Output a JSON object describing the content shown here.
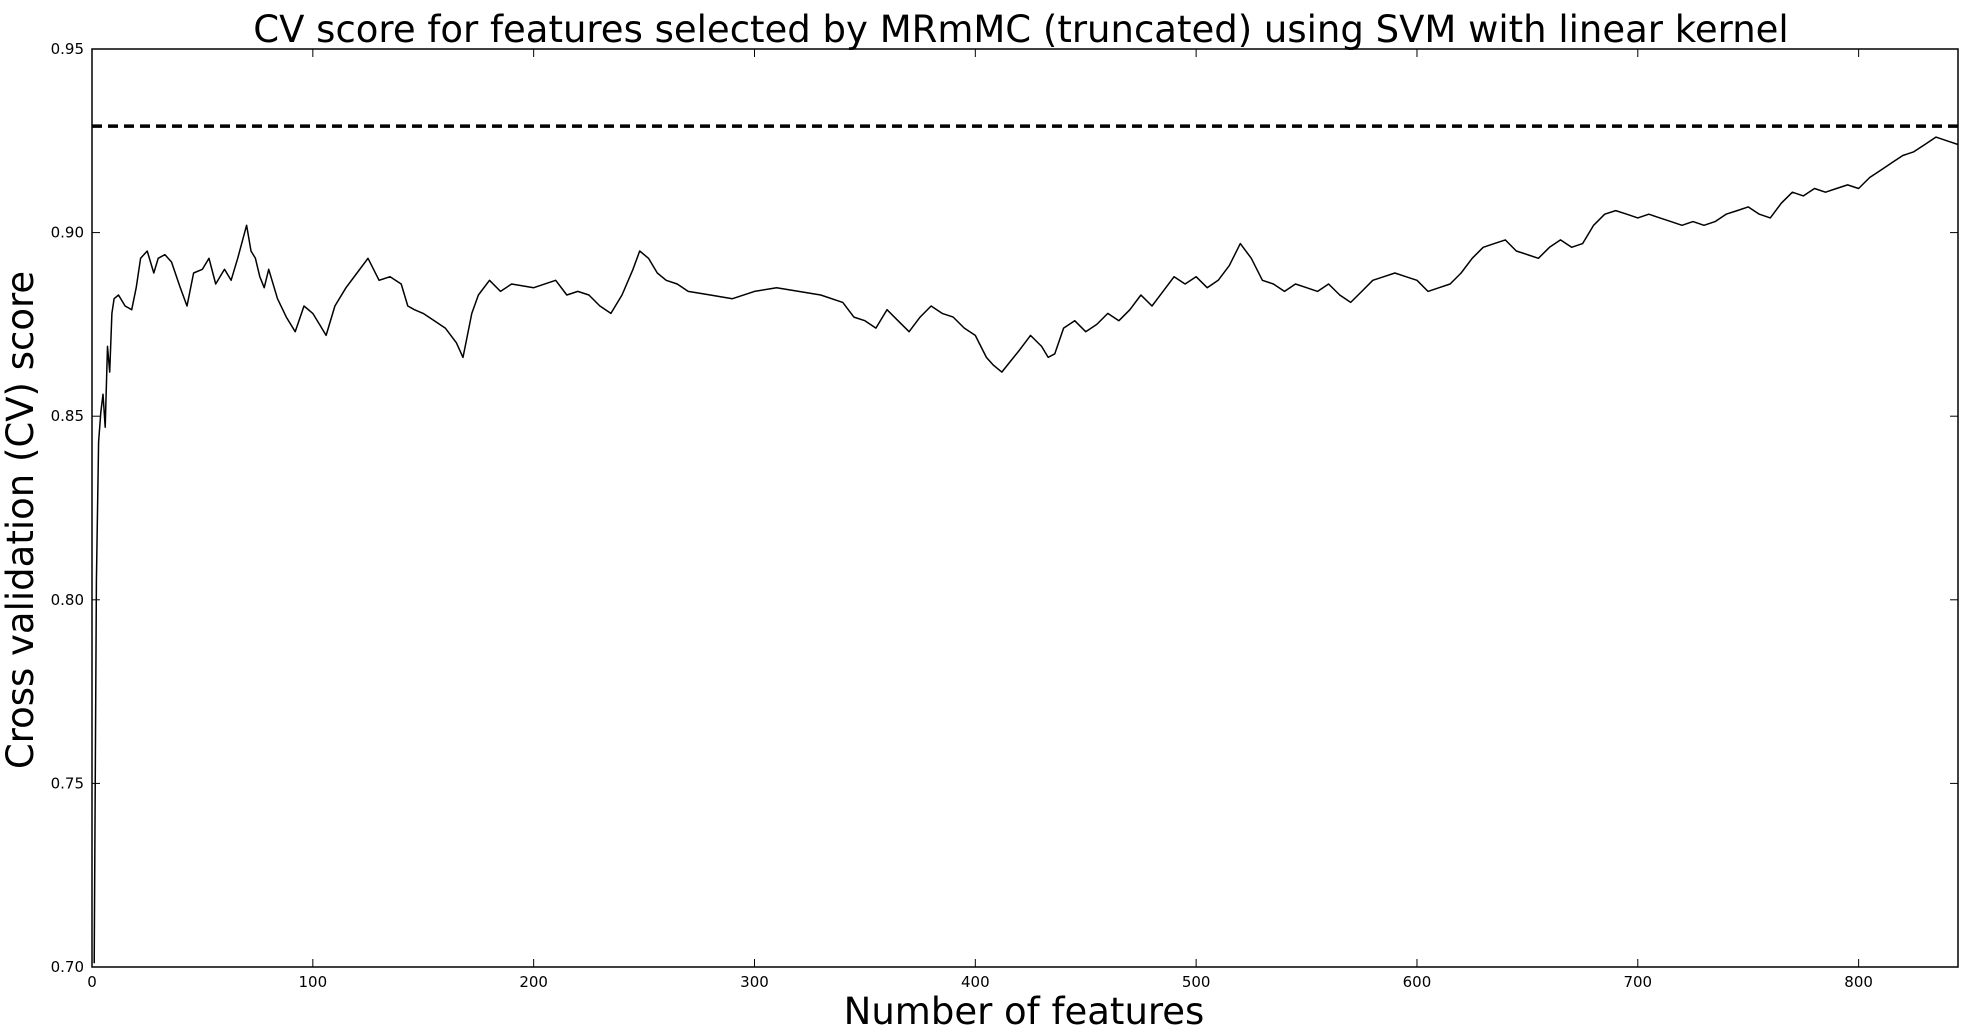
{
  "chart_data": {
    "type": "line",
    "title": "CV score for features selected by MRmMC (truncated) using SVM with linear kernel",
    "xlabel": "Number of features",
    "ylabel": "Cross validation (CV) score",
    "xlim": [
      0,
      845
    ],
    "ylim": [
      0.7,
      0.95
    ],
    "xticks": [
      0,
      100,
      200,
      300,
      400,
      500,
      600,
      700,
      800
    ],
    "yticks": [
      0.7,
      0.75,
      0.8,
      0.85,
      0.9,
      0.95
    ],
    "xtick_labels": [
      "0",
      "100",
      "200",
      "300",
      "400",
      "500",
      "600",
      "700",
      "800"
    ],
    "ytick_labels": [
      "0.70",
      "0.75",
      "0.80",
      "0.85",
      "0.90",
      "0.95"
    ],
    "grid": false,
    "series": [
      {
        "style": "solid",
        "color": "#000000",
        "x": [
          1,
          2,
          3,
          4,
          5,
          6,
          7,
          8,
          9,
          10,
          12,
          15,
          18,
          20,
          22,
          25,
          28,
          30,
          33,
          36,
          40,
          43,
          46,
          50,
          53,
          56,
          60,
          63,
          66,
          70,
          72,
          74,
          76,
          78,
          80,
          84,
          88,
          92,
          96,
          100,
          103,
          106,
          110,
          115,
          120,
          125,
          130,
          135,
          140,
          143,
          146,
          150,
          155,
          160,
          165,
          168,
          170,
          172,
          175,
          180,
          185,
          190,
          200,
          210,
          215,
          220,
          225,
          230,
          235,
          240,
          245,
          248,
          252,
          256,
          260,
          265,
          270,
          280,
          290,
          300,
          310,
          320,
          330,
          340,
          345,
          350,
          355,
          360,
          365,
          370,
          375,
          380,
          385,
          390,
          395,
          400,
          405,
          408,
          412,
          416,
          420,
          425,
          430,
          433,
          436,
          440,
          445,
          450,
          455,
          460,
          465,
          470,
          475,
          480,
          485,
          490,
          495,
          500,
          505,
          510,
          515,
          520,
          525,
          530,
          535,
          540,
          545,
          550,
          555,
          560,
          565,
          570,
          575,
          580,
          585,
          590,
          595,
          600,
          605,
          610,
          615,
          620,
          625,
          630,
          635,
          640,
          645,
          650,
          655,
          660,
          665,
          670,
          675,
          680,
          685,
          690,
          695,
          700,
          705,
          710,
          715,
          720,
          725,
          730,
          735,
          740,
          745,
          750,
          755,
          760,
          765,
          770,
          775,
          780,
          785,
          790,
          795,
          800,
          805,
          810,
          815,
          820,
          825,
          830,
          835,
          840,
          845
        ],
        "y": [
          0.701,
          0.805,
          0.843,
          0.851,
          0.856,
          0.847,
          0.869,
          0.862,
          0.878,
          0.882,
          0.883,
          0.88,
          0.879,
          0.885,
          0.893,
          0.895,
          0.889,
          0.893,
          0.894,
          0.892,
          0.885,
          0.88,
          0.889,
          0.89,
          0.893,
          0.886,
          0.89,
          0.887,
          0.893,
          0.902,
          0.895,
          0.893,
          0.888,
          0.885,
          0.89,
          0.882,
          0.877,
          0.873,
          0.88,
          0.878,
          0.875,
          0.872,
          0.88,
          0.885,
          0.889,
          0.893,
          0.887,
          0.888,
          0.886,
          0.88,
          0.879,
          0.878,
          0.876,
          0.874,
          0.87,
          0.866,
          0.872,
          0.878,
          0.883,
          0.887,
          0.884,
          0.886,
          0.885,
          0.887,
          0.883,
          0.884,
          0.883,
          0.88,
          0.878,
          0.883,
          0.89,
          0.895,
          0.893,
          0.889,
          0.887,
          0.886,
          0.884,
          0.883,
          0.882,
          0.884,
          0.885,
          0.884,
          0.883,
          0.881,
          0.877,
          0.876,
          0.874,
          0.879,
          0.876,
          0.873,
          0.877,
          0.88,
          0.878,
          0.877,
          0.874,
          0.872,
          0.866,
          0.864,
          0.862,
          0.865,
          0.868,
          0.872,
          0.869,
          0.866,
          0.867,
          0.874,
          0.876,
          0.873,
          0.875,
          0.878,
          0.876,
          0.879,
          0.883,
          0.88,
          0.884,
          0.888,
          0.886,
          0.888,
          0.885,
          0.887,
          0.891,
          0.897,
          0.893,
          0.887,
          0.886,
          0.884,
          0.886,
          0.885,
          0.884,
          0.886,
          0.883,
          0.881,
          0.884,
          0.887,
          0.888,
          0.889,
          0.888,
          0.887,
          0.884,
          0.885,
          0.886,
          0.889,
          0.893,
          0.896,
          0.897,
          0.898,
          0.895,
          0.894,
          0.893,
          0.896,
          0.898,
          0.896,
          0.897,
          0.902,
          0.905,
          0.906,
          0.905,
          0.904,
          0.905,
          0.904,
          0.903,
          0.902,
          0.903,
          0.902,
          0.903,
          0.905,
          0.906,
          0.907,
          0.905,
          0.904,
          0.908,
          0.911,
          0.91,
          0.912,
          0.911,
          0.912,
          0.913,
          0.912,
          0.915,
          0.917,
          0.919,
          0.921,
          0.922,
          0.924,
          0.926,
          0.925,
          0.924
        ]
      },
      {
        "style": "dashed",
        "color": "#000000",
        "x": [
          0,
          845
        ],
        "y": [
          0.929,
          0.929
        ]
      }
    ]
  }
}
